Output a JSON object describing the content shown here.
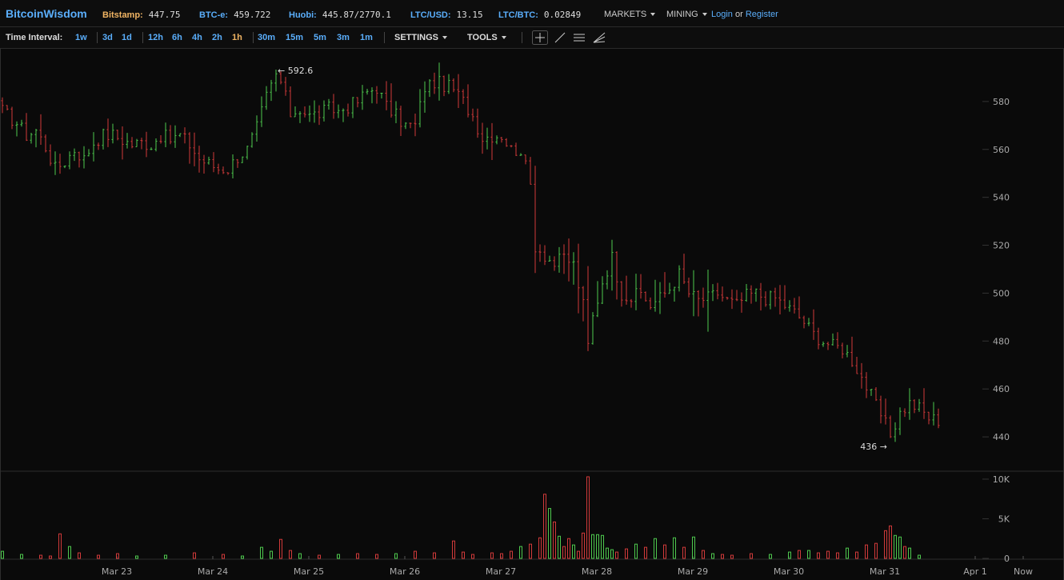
{
  "header": {
    "logo": "BitcoinWisdom",
    "tickers": [
      {
        "label": "Bitstamp:",
        "value": "447.75",
        "color": "#f0b463"
      },
      {
        "label": "BTC-e:",
        "value": "459.722",
        "color": "#5aaefb"
      },
      {
        "label": "Huobi:",
        "value": "445.87/2770.1",
        "color": "#5aaefb"
      },
      {
        "label": "LTC/USD:",
        "value": "13.15",
        "color": "#5aaefb"
      },
      {
        "label": "LTC/BTC:",
        "value": "0.02849",
        "color": "#5aaefb"
      }
    ],
    "markets_label": "MARKETS",
    "mining_label": "MINING",
    "login_label": "Login",
    "or_label": "or",
    "register_label": "Register"
  },
  "toolbar": {
    "time_interval_label": "Time Interval:",
    "intervals": [
      "1w",
      "3d",
      "1d",
      "12h",
      "6h",
      "4h",
      "2h",
      "1h",
      "30m",
      "15m",
      "5m",
      "3m",
      "1m"
    ],
    "active_interval": "1h",
    "settings_label": "SETTINGS",
    "tools_label": "TOOLS",
    "tool_icons": [
      "crosshair-icon",
      "trendline-icon",
      "parallel-lines-icon",
      "fan-icon"
    ]
  },
  "chart_data": {
    "type": "candlestick",
    "y_ticks": [
      440,
      460,
      480,
      500,
      520,
      540,
      560,
      580
    ],
    "ylim": [
      426,
      602
    ],
    "volume_ticks": [
      "10K",
      "5K",
      "0"
    ],
    "volume_max": 10500,
    "x_labels": [
      "Mar 23",
      "Mar 24",
      "Mar 25",
      "Mar 26",
      "Mar 27",
      "Mar 28",
      "Mar 29",
      "Mar 30",
      "Mar 31",
      "Apr 1",
      "Now"
    ],
    "high_annotation": "← 592.6",
    "low_annotation": "436 →",
    "colors": {
      "up": "#4ec94e",
      "down": "#d23a3a",
      "grid": "#333333",
      "axis_text": "#aaaaaa"
    },
    "close_path": [
      [
        0,
        576
      ],
      [
        3,
        571
      ],
      [
        5,
        566
      ],
      [
        7,
        568
      ],
      [
        9,
        561
      ],
      [
        11,
        552
      ],
      [
        13,
        555
      ],
      [
        15,
        560
      ],
      [
        17,
        556
      ],
      [
        19,
        563
      ],
      [
        21,
        566
      ],
      [
        23,
        566
      ],
      [
        25,
        564
      ],
      [
        27,
        562
      ],
      [
        29,
        563
      ],
      [
        31,
        562
      ],
      [
        33,
        566
      ],
      [
        35,
        564
      ],
      [
        37,
        566
      ],
      [
        39,
        562
      ],
      [
        41,
        556
      ],
      [
        43,
        554
      ],
      [
        45,
        552
      ],
      [
        47,
        552
      ],
      [
        49,
        557
      ],
      [
        51,
        560
      ],
      [
        53,
        569
      ],
      [
        55,
        582
      ],
      [
        57,
        591
      ],
      [
        58,
        588
      ],
      [
        60,
        575
      ],
      [
        62,
        577
      ],
      [
        64,
        574
      ],
      [
        66,
        575
      ],
      [
        68,
        577
      ],
      [
        70,
        576
      ],
      [
        72,
        578
      ],
      [
        74,
        580
      ],
      [
        76,
        584
      ],
      [
        78,
        586
      ],
      [
        80,
        578
      ],
      [
        82,
        574
      ],
      [
        84,
        570
      ],
      [
        86,
        570
      ],
      [
        88,
        586
      ],
      [
        90,
        588
      ],
      [
        92,
        587
      ],
      [
        94,
        585
      ],
      [
        96,
        580
      ],
      [
        98,
        574
      ],
      [
        100,
        565
      ],
      [
        102,
        566
      ],
      [
        104,
        566
      ],
      [
        106,
        560
      ],
      [
        108,
        560
      ],
      [
        110,
        545
      ],
      [
        111,
        520
      ],
      [
        113,
        516
      ],
      [
        115,
        512
      ],
      [
        117,
        515
      ],
      [
        119,
        512
      ],
      [
        121,
        495
      ],
      [
        122,
        478
      ],
      [
        123,
        490
      ],
      [
        125,
        505
      ],
      [
        127,
        515
      ],
      [
        129,
        500
      ],
      [
        131,
        498
      ],
      [
        133,
        500
      ],
      [
        135,
        495
      ],
      [
        137,
        498
      ],
      [
        139,
        502
      ],
      [
        141,
        508
      ],
      [
        143,
        500
      ],
      [
        145,
        497
      ],
      [
        147,
        498
      ],
      [
        149,
        500
      ],
      [
        151,
        497
      ],
      [
        153,
        495
      ],
      [
        155,
        499
      ],
      [
        157,
        500
      ],
      [
        159,
        498
      ],
      [
        161,
        498
      ],
      [
        163,
        495
      ],
      [
        165,
        492
      ],
      [
        167,
        488
      ],
      [
        169,
        483
      ],
      [
        171,
        480
      ],
      [
        173,
        478
      ],
      [
        175,
        477
      ],
      [
        177,
        472
      ],
      [
        179,
        465
      ],
      [
        181,
        457
      ],
      [
        183,
        449
      ],
      [
        185,
        441
      ],
      [
        187,
        450
      ],
      [
        189,
        454
      ],
      [
        191,
        452
      ],
      [
        193,
        448
      ],
      [
        195,
        447
      ]
    ],
    "volume_bars": [
      [
        0,
        900
      ],
      [
        4,
        500
      ],
      [
        8,
        400
      ],
      [
        10,
        300
      ],
      [
        12,
        3100
      ],
      [
        14,
        1500
      ],
      [
        16,
        700
      ],
      [
        20,
        400
      ],
      [
        24,
        600
      ],
      [
        28,
        300
      ],
      [
        34,
        400
      ],
      [
        40,
        700
      ],
      [
        46,
        500
      ],
      [
        50,
        300
      ],
      [
        54,
        1400
      ],
      [
        56,
        900
      ],
      [
        58,
        2400
      ],
      [
        60,
        1000
      ],
      [
        62,
        600
      ],
      [
        66,
        400
      ],
      [
        70,
        500
      ],
      [
        74,
        600
      ],
      [
        78,
        500
      ],
      [
        82,
        600
      ],
      [
        86,
        900
      ],
      [
        90,
        700
      ],
      [
        94,
        2200
      ],
      [
        96,
        800
      ],
      [
        98,
        500
      ],
      [
        102,
        700
      ],
      [
        104,
        600
      ],
      [
        106,
        900
      ],
      [
        108,
        1500
      ],
      [
        110,
        1800
      ],
      [
        112,
        2600
      ],
      [
        113,
        8100
      ],
      [
        114,
        6300
      ],
      [
        115,
        4600
      ],
      [
        116,
        2800
      ],
      [
        117,
        1500
      ],
      [
        118,
        2500
      ],
      [
        119,
        1700
      ],
      [
        120,
        900
      ],
      [
        121,
        3200
      ],
      [
        122,
        10300
      ],
      [
        123,
        3000
      ],
      [
        124,
        3000
      ],
      [
        125,
        2900
      ],
      [
        126,
        1300
      ],
      [
        127,
        1100
      ],
      [
        128,
        800
      ],
      [
        130,
        1200
      ],
      [
        132,
        1800
      ],
      [
        134,
        1400
      ],
      [
        136,
        2500
      ],
      [
        138,
        1700
      ],
      [
        140,
        2600
      ],
      [
        142,
        1400
      ],
      [
        144,
        2700
      ],
      [
        146,
        1000
      ],
      [
        148,
        600
      ],
      [
        150,
        500
      ],
      [
        152,
        400
      ],
      [
        156,
        600
      ],
      [
        160,
        500
      ],
      [
        164,
        800
      ],
      [
        166,
        1000
      ],
      [
        168,
        1000
      ],
      [
        170,
        700
      ],
      [
        172,
        900
      ],
      [
        174,
        700
      ],
      [
        176,
        1300
      ],
      [
        178,
        800
      ],
      [
        180,
        1700
      ],
      [
        182,
        1900
      ],
      [
        184,
        3500
      ],
      [
        185,
        4100
      ],
      [
        186,
        2900
      ],
      [
        187,
        2700
      ],
      [
        188,
        1500
      ],
      [
        189,
        1300
      ],
      [
        191,
        400
      ]
    ]
  }
}
